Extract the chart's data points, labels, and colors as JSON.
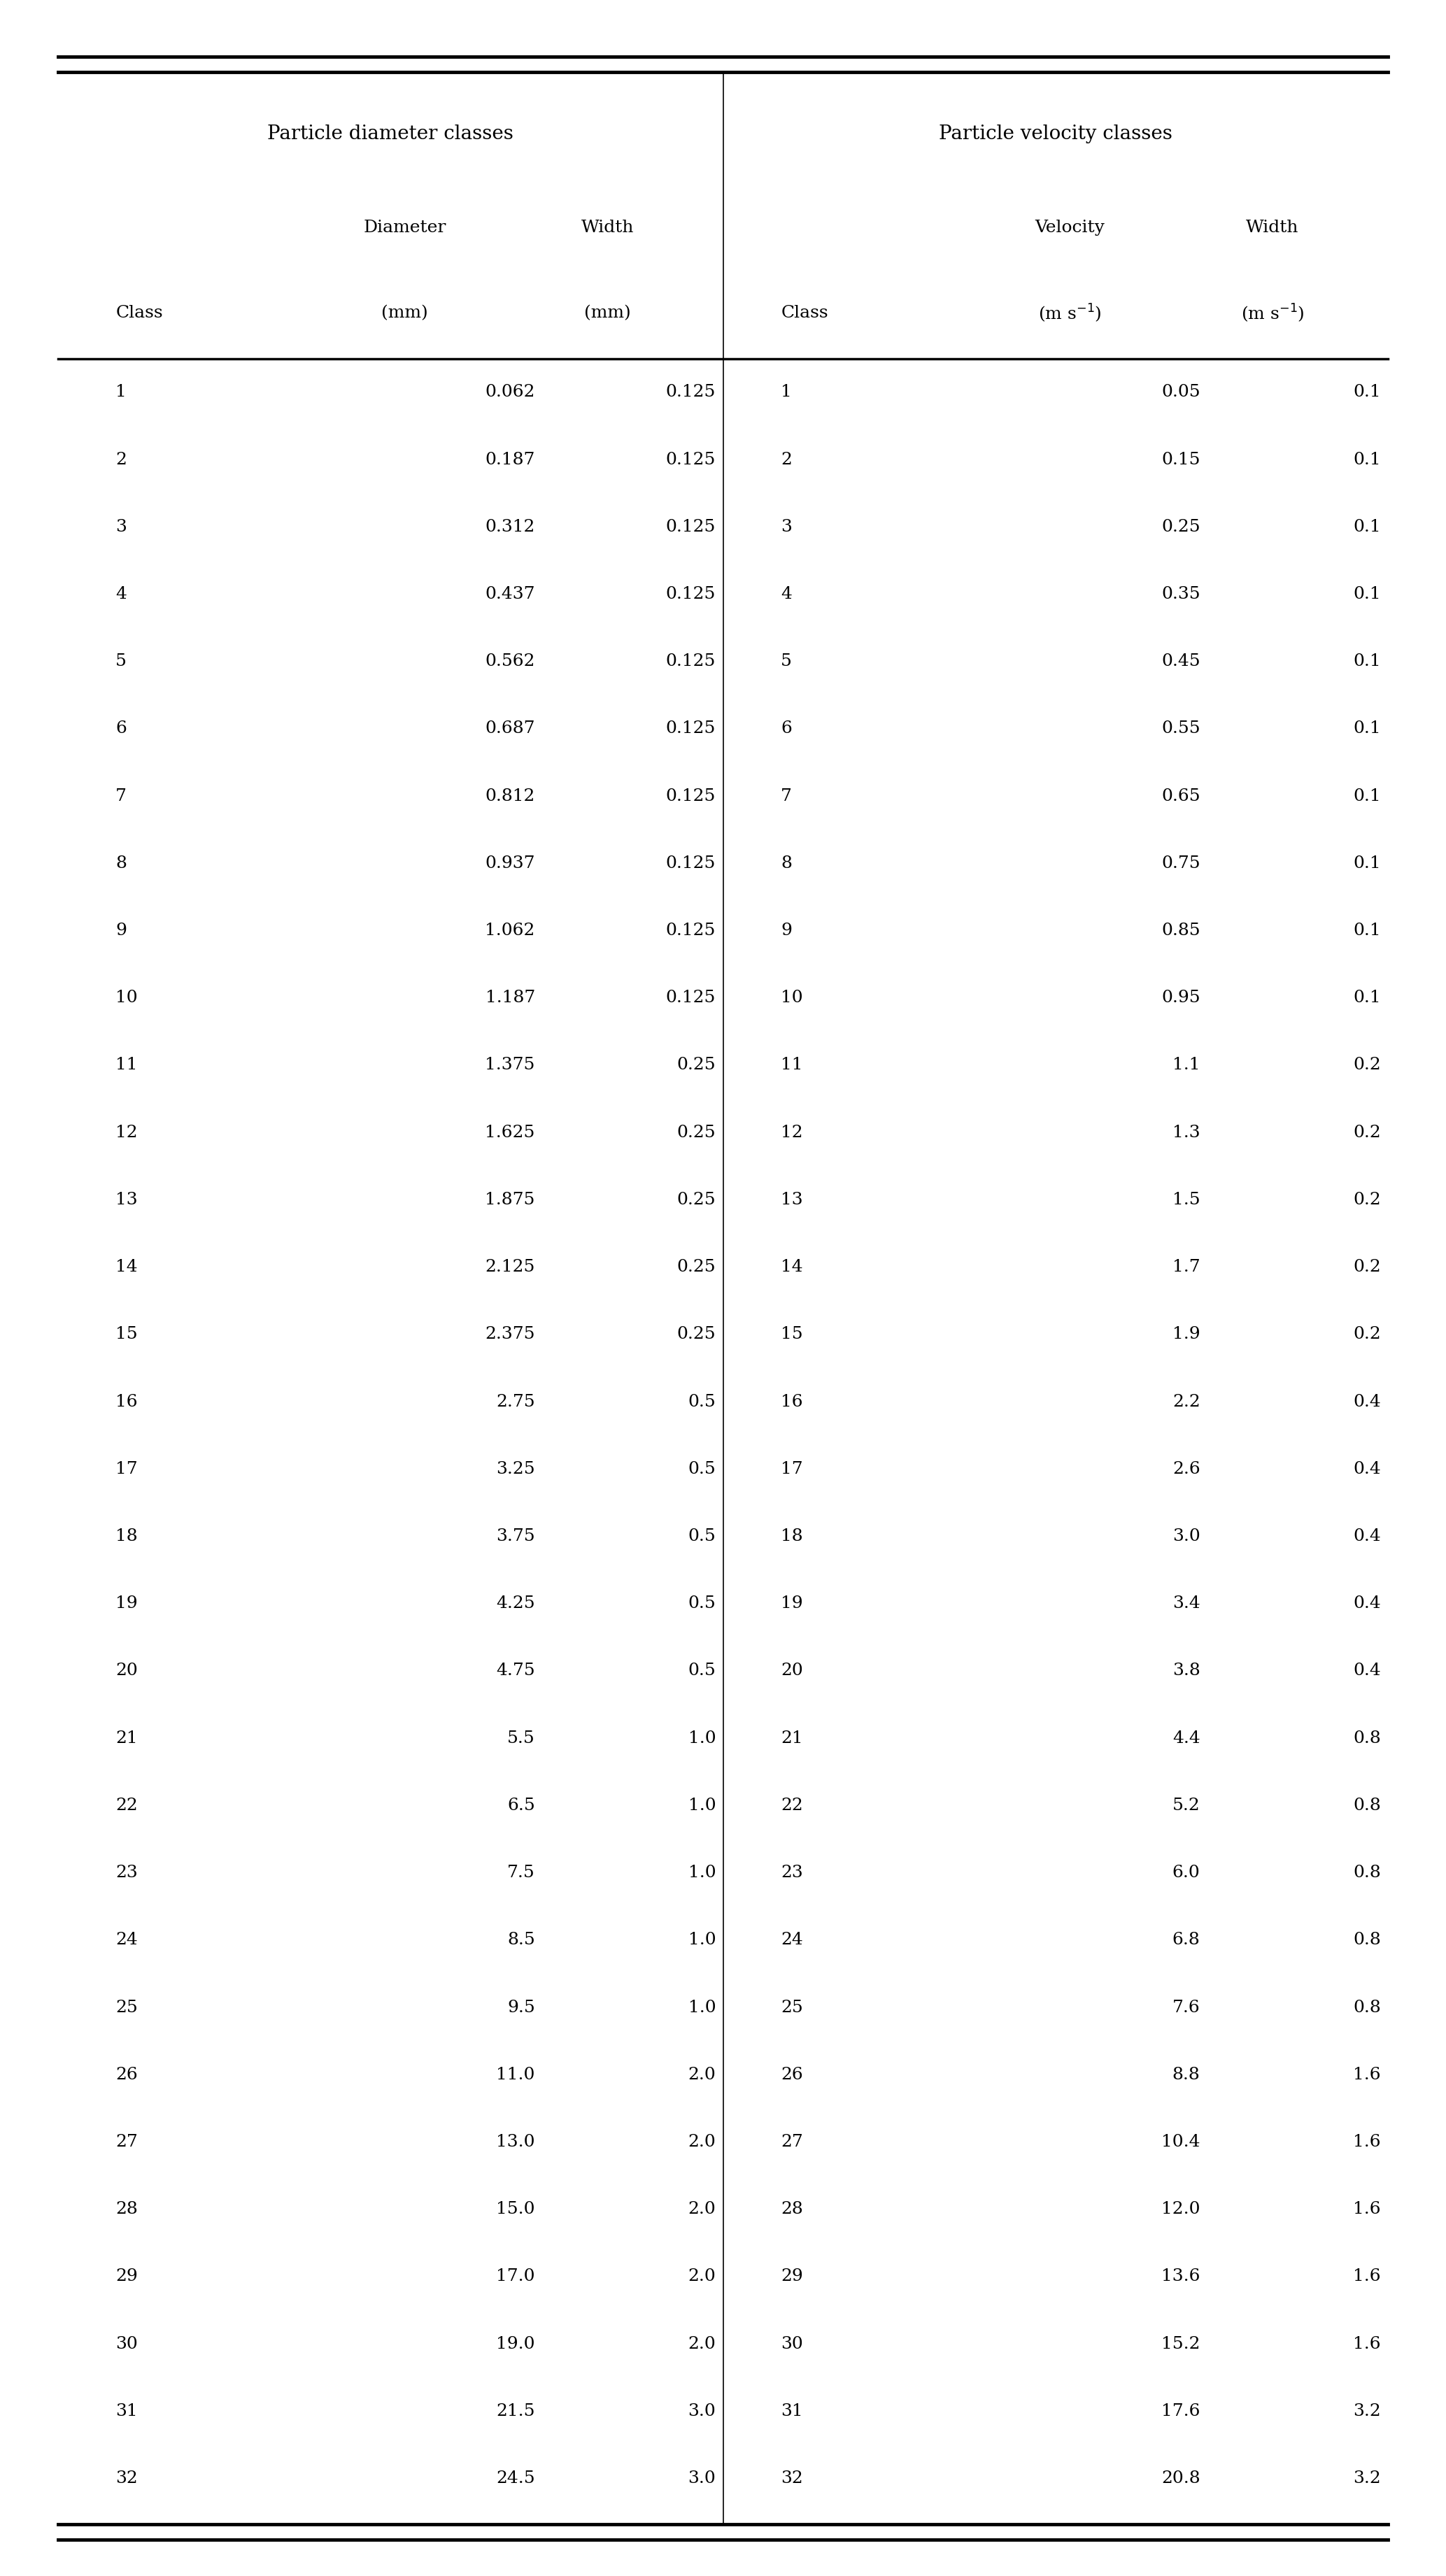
{
  "title_left": "Particle diameter classes",
  "title_right": "Particle velocity classes",
  "diameter_classes": [
    [
      1,
      "0.062",
      "0.125"
    ],
    [
      2,
      "0.187",
      "0.125"
    ],
    [
      3,
      "0.312",
      "0.125"
    ],
    [
      4,
      "0.437",
      "0.125"
    ],
    [
      5,
      "0.562",
      "0.125"
    ],
    [
      6,
      "0.687",
      "0.125"
    ],
    [
      7,
      "0.812",
      "0.125"
    ],
    [
      8,
      "0.937",
      "0.125"
    ],
    [
      9,
      "1.062",
      "0.125"
    ],
    [
      10,
      "1.187",
      "0.125"
    ],
    [
      11,
      "1.375",
      "0.25"
    ],
    [
      12,
      "1.625",
      "0.25"
    ],
    [
      13,
      "1.875",
      "0.25"
    ],
    [
      14,
      "2.125",
      "0.25"
    ],
    [
      15,
      "2.375",
      "0.25"
    ],
    [
      16,
      "2.75",
      "0.5"
    ],
    [
      17,
      "3.25",
      "0.5"
    ],
    [
      18,
      "3.75",
      "0.5"
    ],
    [
      19,
      "4.25",
      "0.5"
    ],
    [
      20,
      "4.75",
      "0.5"
    ],
    [
      21,
      "5.5",
      "1.0"
    ],
    [
      22,
      "6.5",
      "1.0"
    ],
    [
      23,
      "7.5",
      "1.0"
    ],
    [
      24,
      "8.5",
      "1.0"
    ],
    [
      25,
      "9.5",
      "1.0"
    ],
    [
      26,
      "11.0",
      "2.0"
    ],
    [
      27,
      "13.0",
      "2.0"
    ],
    [
      28,
      "15.0",
      "2.0"
    ],
    [
      29,
      "17.0",
      "2.0"
    ],
    [
      30,
      "19.0",
      "2.0"
    ],
    [
      31,
      "21.5",
      "3.0"
    ],
    [
      32,
      "24.5",
      "3.0"
    ]
  ],
  "velocity_classes": [
    [
      1,
      "0.05",
      "0.1"
    ],
    [
      2,
      "0.15",
      "0.1"
    ],
    [
      3,
      "0.25",
      "0.1"
    ],
    [
      4,
      "0.35",
      "0.1"
    ],
    [
      5,
      "0.45",
      "0.1"
    ],
    [
      6,
      "0.55",
      "0.1"
    ],
    [
      7,
      "0.65",
      "0.1"
    ],
    [
      8,
      "0.75",
      "0.1"
    ],
    [
      9,
      "0.85",
      "0.1"
    ],
    [
      10,
      "0.95",
      "0.1"
    ],
    [
      11,
      "1.1",
      "0.2"
    ],
    [
      12,
      "1.3",
      "0.2"
    ],
    [
      13,
      "1.5",
      "0.2"
    ],
    [
      14,
      "1.7",
      "0.2"
    ],
    [
      15,
      "1.9",
      "0.2"
    ],
    [
      16,
      "2.2",
      "0.4"
    ],
    [
      17,
      "2.6",
      "0.4"
    ],
    [
      18,
      "3.0",
      "0.4"
    ],
    [
      19,
      "3.4",
      "0.4"
    ],
    [
      20,
      "3.8",
      "0.4"
    ],
    [
      21,
      "4.4",
      "0.8"
    ],
    [
      22,
      "5.2",
      "0.8"
    ],
    [
      23,
      "6.0",
      "0.8"
    ],
    [
      24,
      "6.8",
      "0.8"
    ],
    [
      25,
      "7.6",
      "0.8"
    ],
    [
      26,
      "8.8",
      "1.6"
    ],
    [
      27,
      "10.4",
      "1.6"
    ],
    [
      28,
      "12.0",
      "1.6"
    ],
    [
      29,
      "13.6",
      "1.6"
    ],
    [
      30,
      "15.2",
      "1.6"
    ],
    [
      31,
      "17.6",
      "3.2"
    ],
    [
      32,
      "20.8",
      "3.2"
    ]
  ],
  "font_size": 18,
  "header_font_size": 18,
  "title_font_size": 20,
  "background_color": "#ffffff"
}
